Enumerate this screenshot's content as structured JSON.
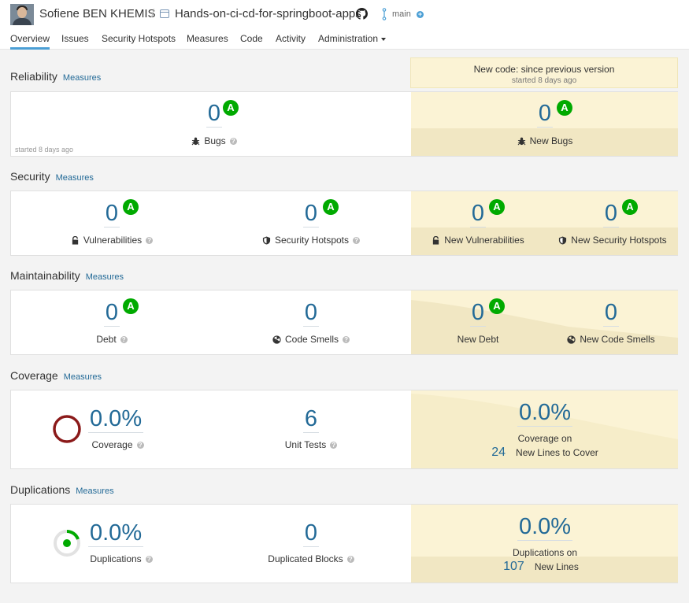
{
  "header": {
    "organization": "Sofiene BEN KHEMIS",
    "separator": "/",
    "project": "Hands-on-ci-cd-for-springboot-apps",
    "branch": "main"
  },
  "nav": {
    "tabs": [
      "Overview",
      "Issues",
      "Security Hotspots",
      "Measures",
      "Code",
      "Activity",
      "Administration"
    ],
    "active": "Overview"
  },
  "new_code": {
    "title": "New code: since previous version",
    "subtitle": "started 8 days ago"
  },
  "measures_link": "Measures",
  "reliability": {
    "title": "Reliability",
    "note": "started 8 days ago",
    "bugs": {
      "value": "0",
      "rating": "A",
      "label": "Bugs"
    },
    "new_bugs": {
      "value": "0",
      "rating": "A",
      "label": "New Bugs"
    }
  },
  "security": {
    "title": "Security",
    "vulnerabilities": {
      "value": "0",
      "rating": "A",
      "label": "Vulnerabilities"
    },
    "hotspots": {
      "value": "0",
      "rating": "A",
      "label": "Security Hotspots"
    },
    "new_vulnerabilities": {
      "value": "0",
      "rating": "A",
      "label": "New Vulnerabilities"
    },
    "new_hotspots": {
      "value": "0",
      "rating": "A",
      "label": "New Security Hotspots"
    }
  },
  "maintainability": {
    "title": "Maintainability",
    "debt": {
      "value": "0",
      "rating": "A",
      "label": "Debt"
    },
    "code_smells": {
      "value": "0",
      "label": "Code Smells"
    },
    "new_debt": {
      "value": "0",
      "rating": "A",
      "label": "New Debt"
    },
    "new_code_smells": {
      "value": "0",
      "label": "New Code Smells"
    }
  },
  "coverage": {
    "title": "Coverage",
    "coverage": {
      "value": "0.0%",
      "label": "Coverage"
    },
    "unit_tests": {
      "value": "6",
      "label": "Unit Tests"
    },
    "new_coverage": {
      "value": "0.0%",
      "label": "Coverage on",
      "lines_value": "24",
      "lines_label": "New Lines to Cover"
    }
  },
  "duplications": {
    "title": "Duplications",
    "duplications": {
      "value": "0.0%",
      "label": "Duplications"
    },
    "blocks": {
      "value": "0",
      "label": "Duplicated Blocks"
    },
    "new_duplications": {
      "value": "0.0%",
      "label": "Duplications on",
      "lines_value": "107",
      "lines_label": "New Lines"
    }
  },
  "colors": {
    "accent": "#236a97",
    "rating_a": "#00aa00",
    "new_code_bg": "#fbf3d5",
    "coverage_ring": "#8b1a1a"
  },
  "icons": [
    "github-icon",
    "branch-icon",
    "bug-icon",
    "lock-icon",
    "shield-icon",
    "code-smell-icon",
    "help-icon"
  ]
}
